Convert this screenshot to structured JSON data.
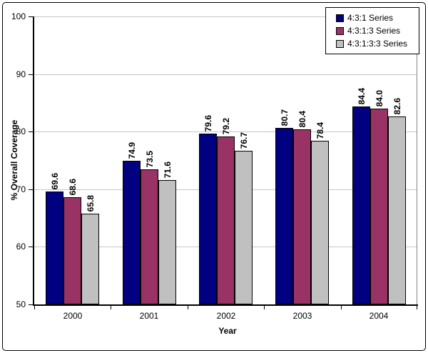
{
  "chart_data": {
    "type": "bar",
    "title": "",
    "xlabel": "Year",
    "ylabel": "% Overall Coverage",
    "categories": [
      "2000",
      "2001",
      "2002",
      "2003",
      "2004"
    ],
    "series": [
      {
        "name": "4:3:1 Series",
        "color": "#000080",
        "values": [
          69.6,
          74.9,
          79.6,
          80.7,
          84.4
        ]
      },
      {
        "name": "4:3:1:3 Series",
        "color": "#993366",
        "values": [
          68.6,
          73.5,
          79.2,
          80.4,
          84.0
        ]
      },
      {
        "name": "4:3:1:3:3 Series",
        "color": "#C0C0C0",
        "values": [
          65.8,
          71.6,
          76.7,
          78.4,
          82.6
        ]
      }
    ],
    "ylim": [
      50,
      100
    ],
    "yticks": [
      50,
      60,
      70,
      80,
      90,
      100
    ],
    "grid": true,
    "gridline_color": "#c6c6c6",
    "axis_color": "#000000",
    "legend_position": "top-right",
    "data_labels": true,
    "data_label_format": "one-decimal",
    "data_label_rotation": -90
  }
}
